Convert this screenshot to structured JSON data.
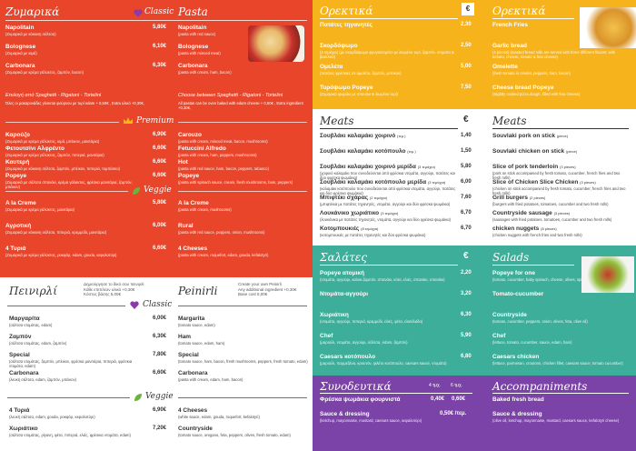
{
  "pasta_panel": {
    "left_title": "Ζυμαρικά",
    "center_title": "Classic",
    "right_title": "Pasta",
    "classic_left": [
      {
        "name": "Napolitain",
        "desc": "(Ζυμαρικά με κόκκινη σάλτσα)",
        "price": "5,80€"
      },
      {
        "name": "Bolognese",
        "desc": "(Ζυμαρικά με κιμά)",
        "price": "6,10€"
      },
      {
        "name": "Carbonara",
        "desc": "(Ζυμαρικά με κρέμα γάλακτος, ζαμπόν, bacon)",
        "price": "6,30€"
      }
    ],
    "classic_right": [
      {
        "name": "Napolitain",
        "desc": "(pasta with red sauce)"
      },
      {
        "name": "Bolognese",
        "desc": "(pasta with minced meat)"
      },
      {
        "name": "Carbonara",
        "desc": "(pasta with cream, ham, bacon)"
      }
    ],
    "choose_left": "Επιλογή από Spaghetti - Rigatoni - Tortelini",
    "choose_left_note": "Όλες οι μακαρονάδες γίνονται φούρνου με τυρί edam  + 0,50€ , Extra υλικό  +0,30€,",
    "choose_right": "Choose between Spaghetti - Rigatoni - Tortelini",
    "choose_right_note": "All pastas can be oven baked with edam cheese  + 0,50€ , Extra ingredient  +0,30€,",
    "premium_title": "Premium",
    "premium_left": [
      {
        "name": "Καρούζο",
        "desc": "(Ζυμαρικά με κρέμα γάλακτος, κιμά, μπέικον, μανιτάρια)",
        "price": "6,90€"
      },
      {
        "name": "Φετουτσίνι Αλφρέντο",
        "desc": "(Ζυμαρικά με κρέμα γάλακτος, ζαμπόν, πιπεριά, μανιτάρια)",
        "price": "6,60€"
      },
      {
        "name": "Καυτερή",
        "desc": "(Ζυμαρικά με κόκκινη σάλτσα, ζαμπόν, μπέικον, πιπεριά, τομπάσκο)",
        "price": "6,60€"
      },
      {
        "name": "Popeye",
        "desc": "(Ζυμαρικά με σάλτσα σπανάκι, κρέμα γάλακτος, φρέσκα μανιτάρια, ζαμπόν, μπέικον)",
        "price": "6,60€"
      }
    ],
    "premium_right": [
      {
        "name": "Carouzo",
        "desc": "(pasta with cream, minced meat, bacon, mushrooms)"
      },
      {
        "name": "Fetuccini Alfredo",
        "desc": "(pasta with cream, ham, peppers, mushrooms)"
      },
      {
        "name": "Hot",
        "desc": "(pasta with red sauce, ham, bacon, peppers, tabasco)"
      },
      {
        "name": "Popeye",
        "desc": "(pasta with spinach sauce, cream, fresh mushrooms, ham, peppers)"
      }
    ],
    "veggie_title": "Veggie",
    "veggie_left": [
      {
        "name": "A la Creme",
        "desc": "(Ζυμαρικά με κρέμα γάλακτος, μανιτάρια)",
        "price": "5,80€"
      },
      {
        "name": "Αγροτική",
        "desc": "(Ζυμαρικά με κόκκινη σάλτσα, πιπεριά, κρεμμύδι, μανιτάρια)",
        "price": "6,00€"
      },
      {
        "name": "4 Τυριά",
        "desc": "(Ζυμαρικά με κρέμα γάλακτος, ροκφόρ, edam, gouda, κεφαλοτύρι)",
        "price": "6,60€"
      }
    ],
    "veggie_right": [
      {
        "name": "A la Creme",
        "desc": "(pasta with cream, mushrooms)"
      },
      {
        "name": "Rural",
        "desc": "(pasta with red sauce, peppers, onion, mushrooms)"
      },
      {
        "name": "4 Cheeses",
        "desc": "(pasta with cream, roquefort, edam, gouda, kefalotyri)"
      }
    ]
  },
  "pinsa_panel": {
    "left_title": "Πεινιρλί",
    "right_title": "Peinirli",
    "center_title": "Classic",
    "left_note": "Δημιούργησε το δικό σου πεινιρλί",
    "left_note2": "Κάθε επιπλέον υλικό +0,30€",
    "left_note3": "Κόστος βάσης 5,00€",
    "right_note": "Create your own Peinirli",
    "right_note2": "Any additional ingredient +0,30€",
    "right_note3": "Base cost 5,00€",
    "classic_left": [
      {
        "name": "Μαργαρίτα",
        "desc": "(σάλτσα ντομάτας, edam)",
        "price": "6,00€"
      },
      {
        "name": "Ζαμπόν",
        "desc": "(σάλτσα ντομάτας, edam, ζαμπόν)",
        "price": "6,30€"
      },
      {
        "name": "Special",
        "desc": "(σάλτσα ντομάτας, ζαμπόν, μπέικον, φρέσκα μανιτάρια, πιπεριά, φρέσκια ντομάτα, edam)",
        "price": "7,80€"
      },
      {
        "name": "Carbonara",
        "desc": "(λευκή σάλτσα, edam, ζαμπόν, μπέικον)",
        "price": "6,60€"
      }
    ],
    "classic_right": [
      {
        "name": "Margarita",
        "desc": "(tomato sauce, edam)"
      },
      {
        "name": "Ham",
        "desc": "(tomato sauce, edam, ham)"
      },
      {
        "name": "Special",
        "desc": "(tomato sauce, ham, bacon, fresh mushrooms, peppers, fresh tomato, edam)"
      },
      {
        "name": "Carbonara",
        "desc": "(pasta with cream, edam, ham, bacon)"
      }
    ],
    "veggie_title": "Veggie",
    "veggie_left": [
      {
        "name": "4 Τυριά",
        "desc": "(λευκή σάλτσα, edam, gouda, ροκφόρ, κεφαλοτύρι)",
        "price": "6,90€"
      },
      {
        "name": "Χωριάτικο",
        "desc": "(σάλτσα ντομάτας, ρίγανη, φέτα, πιπεριά, ελιές, φρέσκια ντομάτα, edam)",
        "price": "7,20€"
      }
    ],
    "veggie_right": [
      {
        "name": "4 Cheeses",
        "desc": "(white sauce, edam, gouda, roquefort, kefalotyri)"
      },
      {
        "name": "Countryside",
        "desc": "(tomato sauce, oregano, feta, peppers, olives, fresh tomato, edam)"
      }
    ]
  },
  "orekt_panel": {
    "left_title": "Ορεκτικά",
    "right_title": "Ορεκτικά",
    "currency": "€",
    "items": [
      {
        "gr": "Πατάτες τηγανητές",
        "gr_desc": "",
        "price": "2,30",
        "en": "French Fries",
        "en_desc": ""
      },
      {
        "gr": "Σκορδόψωμο",
        "gr_desc": "(4 τεμάχια) (με σκορδόψωμο φρυγανισμένο με λιωμένο τυρί, ζαμπόν, ντομάτα & βασιλικό)",
        "price": "2,50",
        "en": "Garlic bread",
        "en_desc": "(4 pieces) (toasted bread rolls are served with three different flavors: with tomato, cheese, tomato & feta cheese)"
      },
      {
        "gr": "Ομελέτα",
        "gr_desc": "(πατάτες φρέσκιες σε ομελέτα, ζαμπόν, μπέικον)",
        "price": "5,00",
        "en": "Omelette",
        "en_desc": "(fresh tomato in omelet, peppers, ham, bacon)"
      },
      {
        "gr": "Τυρόψωμο Popeye",
        "gr_desc": "(Ζυμαρικό ψωμάκι με σπανάκι & λιωμένο τυρί)",
        "price": "7,50",
        "en": "Cheese bread Popeye",
        "en_desc": "(slightly cooked pizza dough, filled with feta cheese)"
      }
    ]
  },
  "meats_panel": {
    "left_title": "Meats",
    "right_title": "Meats",
    "currency": "€",
    "items": [
      {
        "gr": "Σουβλάκι καλαμάκι χοιρινό",
        "gr_tag": "(τεμ.)",
        "gr_desc": "",
        "price": "1,40",
        "en": "Souvlaki pork on stick",
        "en_tag": "(piece)",
        "en_desc": ""
      },
      {
        "gr": "Σουβλάκι καλαμάκι κοτόπουλο",
        "gr_tag": "(τεμ.)",
        "gr_desc": "",
        "price": "1,50",
        "en": "Souvlaki chicken on stick",
        "en_tag": "(piece)",
        "en_desc": ""
      },
      {
        "gr": "Σουβλάκι καλαμάκι χοιρινό μερίδα",
        "gr_tag": "(3 τεμάχια)",
        "gr_desc": "(χοιρινό καλαμάκι που συνοδεύονται από φρέσκια ντομάτα, αγγούρι, πατάτες και δύο φρέσκα ψωμάκια)",
        "price": "5,80",
        "en": "Slice of pork tenderloin",
        "en_tag": "(3 pieces)",
        "en_desc": "(pork on stick accompanied by fresh tomato, cucumber, french fries and two fresh rolls)"
      },
      {
        "gr": "Σουβλάκι καλαμάκι κοτόπουλο μερίδα",
        "gr_tag": "(3 τεμάχια)",
        "gr_desc": "(καλαμάκι κοτόπουλο που συνοδεύονται από φρέσκια ντομάτα, αγγούρι, πατάτες και δύο φρέσκα ψωμάκια)",
        "price": "6,00",
        "en": "Slice of Chicken Slice Chicken",
        "en_tag": "(3 pieces)",
        "en_desc": "(chicken on stick accompanied by fresh tomato, cucumber, french fries and two fresh rolls)"
      },
      {
        "gr": "Μπιφτέκι σχάρας",
        "gr_tag": "(2 τεμάχια)",
        "gr_desc": "(μπιφτέκια με πατάτες τηγανητές, ντομάτα, αγγούρι και δύο φρέσκα ψωμάκια)",
        "price": "7,60",
        "en": "Grill burgers",
        "en_tag": "(2 pieces)",
        "en_desc": "(burgers with fried potatoes, tomatoes, cucumber and two fresh rolls)"
      },
      {
        "gr": "Λουκάνικο χωριάτικο",
        "gr_tag": "(3 τεμάχια)",
        "gr_desc": "(λουκάνικα με πατάτες τηγανητές, ντομάτα, αγγούρι και δύο φρέσκα ψωμάκια)",
        "price": "6,70",
        "en": "Countryside sausage",
        "en_tag": "(3 pieces)",
        "en_desc": "(sausages with fried potatoes, tomatoes, cucumber and two fresh rolls)"
      },
      {
        "gr": "Κοτομπουκιές",
        "gr_tag": "(8 τεμάχια)",
        "gr_desc": "(κοτομπουκιές με πατάτες τηγανητές και δύο φρέσκα ψωμάκια)",
        "price": "6,70",
        "en": "chicken nuggets",
        "en_tag": "(8 pieces)",
        "en_desc": "(chicken nuggets with french fries and two fresh rolls)"
      }
    ]
  },
  "salad_panel": {
    "left_title": "Σαλάτες",
    "right_title": "Salads",
    "currency": "€",
    "items": [
      {
        "gr": "Popeye ατομική",
        "gr_desc": "(ντομάτα, αγγούρι, καλοκ.ζαμπόν, σπανάκι, κότα, ελιές, σπανάκι, σπανάκι)",
        "price": "2,20",
        "en": "Popeye for one",
        "en_desc": "(tomato, cucumber, baby spinach, cheese, olives, spinach)"
      },
      {
        "gr": "Ντομάτα-αγγούρι",
        "gr_desc": "",
        "price": "3,20",
        "en": "Tomato-cucumber",
        "en_desc": ""
      },
      {
        "gr": "Χωριάτικη",
        "gr_desc": "(ντομάτα, αγγούρι, πιπεριά, κρεμμύδι, ελιές, φέτα, ελαιόλαδο)",
        "price": "6,30",
        "en": "Countryside",
        "en_desc": "(tomato, cucumber, peppers, onion, olives, feta, olive oil)"
      },
      {
        "gr": "Chef",
        "gr_desc": "(μαρούλι, ντομάτα, αγγούρι, σάλτσα, edam, ζαμπόν)",
        "price": "5,90",
        "en": "Chef",
        "en_desc": "(lettuce, tomato, cucumber, sauce, edam, ham)"
      },
      {
        "gr": "Caesars κοτόπουλο",
        "gr_desc": "(μαρούλι, παρμεζάνα, κρουτόν, φιλέτο κοτόπουλο, caesars sauce, ντομάτα)",
        "price": "6,80",
        "en": "Caesars chicken",
        "en_desc": "(lettuce, parmesan, croutons, chicken fillet, caesars sauce, tomato cucumber)"
      }
    ]
  },
  "acc_panel": {
    "left_title": "Συνοδευτικά",
    "right_title": "Accompaniments",
    "col1": "4 τμχ.",
    "col2": "6 τμχ.",
    "items": [
      {
        "gr": "Φρέσκα ψωμάκια φουρνιστά",
        "gr_desc": "",
        "p1": "0,40€",
        "p2": "0,60€",
        "en": "Baked fresh bread",
        "en_desc": ""
      },
      {
        "gr": "Sauce & dressing",
        "gr_desc": "(ketchup, mayonnaise, mustard, caesars sauce, κεφαλοτύρι)",
        "p1": "",
        "p2": "0,50€ /τεμ.",
        "en": "Sauce & dressing",
        "en_desc": "(olive oil, ketchup, mayonnaise, mustard, caesars sauce, kefalotyri cheese)"
      }
    ]
  },
  "colors": {
    "red": "#e8452b",
    "yellow": "#f7b31b",
    "teal": "#3cae9a",
    "purple": "#7b42a8",
    "green": "#6cb33e",
    "dark": "#333333"
  }
}
